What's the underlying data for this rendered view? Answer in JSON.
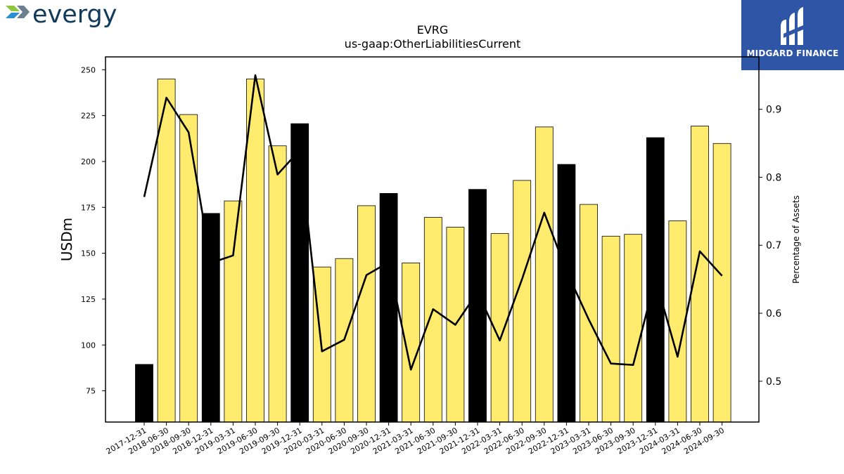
{
  "brand": {
    "name": "evergy"
  },
  "publisher": {
    "name": "MIDGARD FINANCE"
  },
  "colors": {
    "bar_highlight": "#000000",
    "bar_default": "#ffec6e",
    "line": "#000000",
    "badge_bg": "#2f56a6",
    "brand_text": "#0f3a5a"
  },
  "chart_data": {
    "type": "bar",
    "title": "EVRG",
    "subtitle": "us-gaap:OtherLiabilitiesCurrent",
    "ylabel": "USDm",
    "y2label": "Percentage of Assets",
    "ylim": [
      58,
      257
    ],
    "y2lim": [
      0.44,
      0.977
    ],
    "yticks": [
      75,
      100,
      125,
      150,
      175,
      200,
      225,
      250
    ],
    "y2ticks": [
      0.5,
      0.6,
      0.7,
      0.8,
      0.9
    ],
    "y2ticklabels": [
      "0.5",
      "0.6",
      "0.7",
      "0.8",
      "0.9"
    ],
    "categories": [
      "2017-12-31",
      "2018-06-30",
      "2018-09-30",
      "2018-12-31",
      "2019-03-31",
      "2019-06-30",
      "2019-09-30",
      "2019-12-31",
      "2020-03-31",
      "2020-06-30",
      "2020-09-30",
      "2020-12-31",
      "2021-03-31",
      "2021-06-30",
      "2021-09-30",
      "2021-12-31",
      "2022-03-31",
      "2022-06-30",
      "2022-09-30",
      "2022-12-31",
      "2023-03-31",
      "2023-06-30",
      "2023-09-30",
      "2023-12-31",
      "2024-03-31",
      "2024-06-30",
      "2024-09-30"
    ],
    "series": [
      {
        "type": "bar",
        "axis": "left",
        "values": [
          89.4,
          244.9,
          225.6,
          171.7,
          178.5,
          245.0,
          208.5,
          220.6,
          142.5,
          147.1,
          175.9,
          182.6,
          144.7,
          169.5,
          164.2,
          184.8,
          160.7,
          189.7,
          218.8,
          198.4,
          176.6,
          159.3,
          160.3,
          213.0,
          167.6,
          219.3,
          209.8
        ],
        "highlight": [
          true,
          false,
          false,
          true,
          false,
          false,
          false,
          true,
          false,
          false,
          false,
          true,
          false,
          false,
          false,
          true,
          false,
          false,
          false,
          true,
          false,
          false,
          false,
          true,
          false,
          false,
          false
        ]
      },
      {
        "type": "line",
        "axis": "right",
        "values": [
          0.771,
          0.917,
          0.866,
          0.674,
          0.685,
          0.95,
          0.804,
          0.84,
          0.544,
          0.561,
          0.656,
          0.675,
          0.517,
          0.606,
          0.583,
          0.631,
          0.56,
          0.65,
          0.748,
          0.662,
          0.591,
          0.526,
          0.524,
          0.651,
          0.536,
          0.691,
          0.655
        ]
      }
    ],
    "grid": false,
    "legend": "none"
  }
}
